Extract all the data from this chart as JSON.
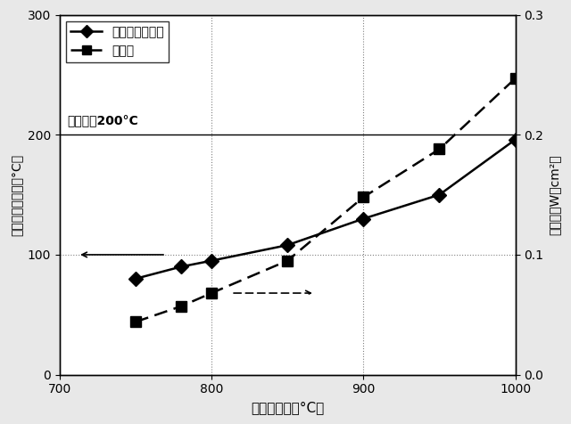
{
  "xlabel": "スラブ温度（°C）",
  "ylabel_left": "素子加熱面温度（°C）",
  "ylabel_right": "発電量（W／cm²）",
  "xlim": [
    700,
    1000
  ],
  "ylim_left": [
    0,
    300
  ],
  "ylim_right": [
    0,
    0.3
  ],
  "xticks": [
    700,
    800,
    900,
    1000
  ],
  "yticks_left": [
    0,
    100,
    200,
    300
  ],
  "yticks_right": [
    0,
    0.1,
    0.2,
    0.3
  ],
  "solid_x": [
    750,
    780,
    800,
    850,
    900,
    950,
    1000
  ],
  "solid_y": [
    80,
    90,
    95,
    108,
    130,
    150,
    196
  ],
  "dashed_x": [
    750,
    780,
    800,
    850,
    900,
    950,
    1000
  ],
  "dashed_y": [
    0.044,
    0.057,
    0.068,
    0.095,
    0.148,
    0.188,
    0.247
  ],
  "hline_y": 200,
  "hline_label": "管理温度200°C",
  "dotted_hline_y": 100,
  "dotted_vline_x1": 800,
  "dotted_vline_x2": 900,
  "legend_solid": "素子加熱面温度",
  "legend_dashed": "発電量",
  "bg_color": "#e8e8e8",
  "plot_bg": "#ffffff"
}
